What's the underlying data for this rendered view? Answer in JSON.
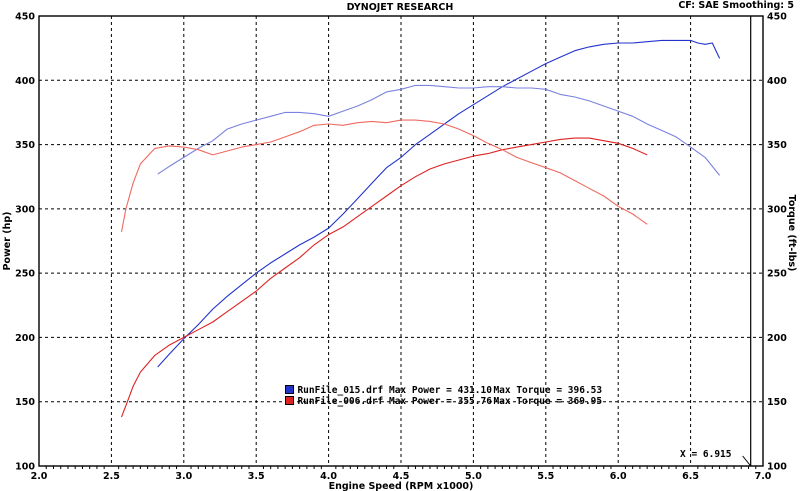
{
  "header": {
    "title": "DYNOJET RESEARCH",
    "settings": "CF: SAE  Smoothing: 5"
  },
  "cursor_label": "X = 6.915",
  "legend": [
    {
      "file": "RunFile_015.drf",
      "power": "Max Power = 431.10",
      "torque": "Max Torque = 396.53",
      "color": "#2233cc"
    },
    {
      "file": "RunFile_006.drf",
      "power": "Max Power = 355.76",
      "torque": "Max Torque = 369.95",
      "color": "#dd2222"
    }
  ],
  "chart_data": {
    "type": "line",
    "title": "DYNOJET RESEARCH",
    "xlabel": "Engine Speed (RPM x1000)",
    "ylabel": "Power (hp)",
    "y2label": "Torque (ft-lbs)",
    "xlim": [
      2.0,
      7.0
    ],
    "ylim": [
      100,
      450
    ],
    "y2lim": [
      100,
      450
    ],
    "x_ticks": [
      "2.0",
      "2.5",
      "3.0",
      "3.5",
      "4.0",
      "4.5",
      "5.0",
      "5.5",
      "6.0",
      "6.5",
      "7.0"
    ],
    "y_ticks": [
      "100",
      "150",
      "200",
      "250",
      "300",
      "350",
      "400",
      "450"
    ],
    "y2_ticks": [
      "100",
      "150",
      "200",
      "250",
      "300",
      "350",
      "400",
      "450"
    ],
    "grid": true,
    "cursor_x": 6.915,
    "series": [
      {
        "name": "RunFile_015.drf",
        "kind": "power",
        "color": "#2233cc",
        "x": [
          2.82,
          2.9,
          3.0,
          3.1,
          3.2,
          3.3,
          3.4,
          3.5,
          3.6,
          3.7,
          3.8,
          3.9,
          4.0,
          4.1,
          4.2,
          4.3,
          4.4,
          4.5,
          4.6,
          4.7,
          4.8,
          4.9,
          5.0,
          5.1,
          5.2,
          5.3,
          5.4,
          5.5,
          5.6,
          5.7,
          5.8,
          5.9,
          6.0,
          6.1,
          6.2,
          6.3,
          6.4,
          6.5,
          6.55,
          6.6,
          6.65,
          6.7
        ],
        "y": [
          177,
          187,
          199,
          210,
          222,
          232,
          241,
          250,
          258,
          265,
          272,
          278,
          285,
          296,
          308,
          320,
          332,
          340,
          350,
          358,
          366,
          374,
          381,
          388,
          395,
          401,
          407,
          413,
          418,
          423,
          426,
          428,
          429,
          429,
          430,
          431,
          431,
          431,
          429,
          428,
          429,
          417
        ]
      },
      {
        "name": "RunFile_015.drf",
        "kind": "torque",
        "color": "#7b82e0",
        "x": [
          2.82,
          2.9,
          3.0,
          3.1,
          3.2,
          3.3,
          3.4,
          3.5,
          3.6,
          3.7,
          3.8,
          3.9,
          4.0,
          4.1,
          4.2,
          4.3,
          4.4,
          4.5,
          4.6,
          4.7,
          4.8,
          4.9,
          5.0,
          5.1,
          5.2,
          5.3,
          5.4,
          5.5,
          5.6,
          5.7,
          5.8,
          5.9,
          6.0,
          6.1,
          6.2,
          6.3,
          6.4,
          6.5,
          6.6,
          6.7
        ],
        "y": [
          327,
          333,
          340,
          347,
          353,
          362,
          366,
          369,
          372,
          375,
          375,
          374,
          372,
          376,
          380,
          385,
          391,
          393,
          396,
          396,
          395,
          394,
          394,
          395,
          395,
          394,
          394,
          393,
          389,
          387,
          384,
          380,
          376,
          372,
          366,
          361,
          356,
          348,
          340,
          326
        ]
      },
      {
        "name": "RunFile_006.drf",
        "kind": "power",
        "color": "#dd2222",
        "x": [
          2.57,
          2.6,
          2.65,
          2.7,
          2.8,
          2.9,
          3.0,
          3.1,
          3.2,
          3.3,
          3.4,
          3.5,
          3.6,
          3.7,
          3.8,
          3.9,
          4.0,
          4.1,
          4.2,
          4.3,
          4.4,
          4.5,
          4.6,
          4.7,
          4.8,
          4.9,
          5.0,
          5.1,
          5.2,
          5.3,
          5.4,
          5.5,
          5.6,
          5.7,
          5.8,
          5.9,
          6.0,
          6.1,
          6.2
        ],
        "y": [
          138,
          147,
          162,
          173,
          186,
          194,
          200,
          206,
          212,
          220,
          228,
          236,
          246,
          254,
          262,
          272,
          280,
          286,
          294,
          302,
          310,
          318,
          325,
          331,
          335,
          338,
          341,
          343,
          346,
          348,
          350,
          352,
          354,
          355,
          355,
          353,
          351,
          347,
          342
        ]
      },
      {
        "name": "RunFile_006.drf",
        "kind": "torque",
        "color": "#ee6a60",
        "x": [
          2.57,
          2.6,
          2.65,
          2.7,
          2.8,
          2.9,
          3.0,
          3.1,
          3.2,
          3.3,
          3.4,
          3.5,
          3.6,
          3.7,
          3.8,
          3.9,
          4.0,
          4.1,
          4.2,
          4.3,
          4.4,
          4.5,
          4.6,
          4.7,
          4.8,
          4.9,
          5.0,
          5.1,
          5.2,
          5.3,
          5.4,
          5.5,
          5.6,
          5.7,
          5.8,
          5.9,
          6.0,
          6.1,
          6.2
        ],
        "y": [
          282,
          300,
          320,
          335,
          347,
          349,
          348,
          346,
          342,
          345,
          348,
          350,
          352,
          356,
          360,
          365,
          366,
          365,
          367,
          368,
          367,
          369,
          369,
          368,
          366,
          362,
          357,
          351,
          346,
          340,
          336,
          332,
          328,
          322,
          316,
          310,
          302,
          296,
          288
        ]
      }
    ]
  }
}
